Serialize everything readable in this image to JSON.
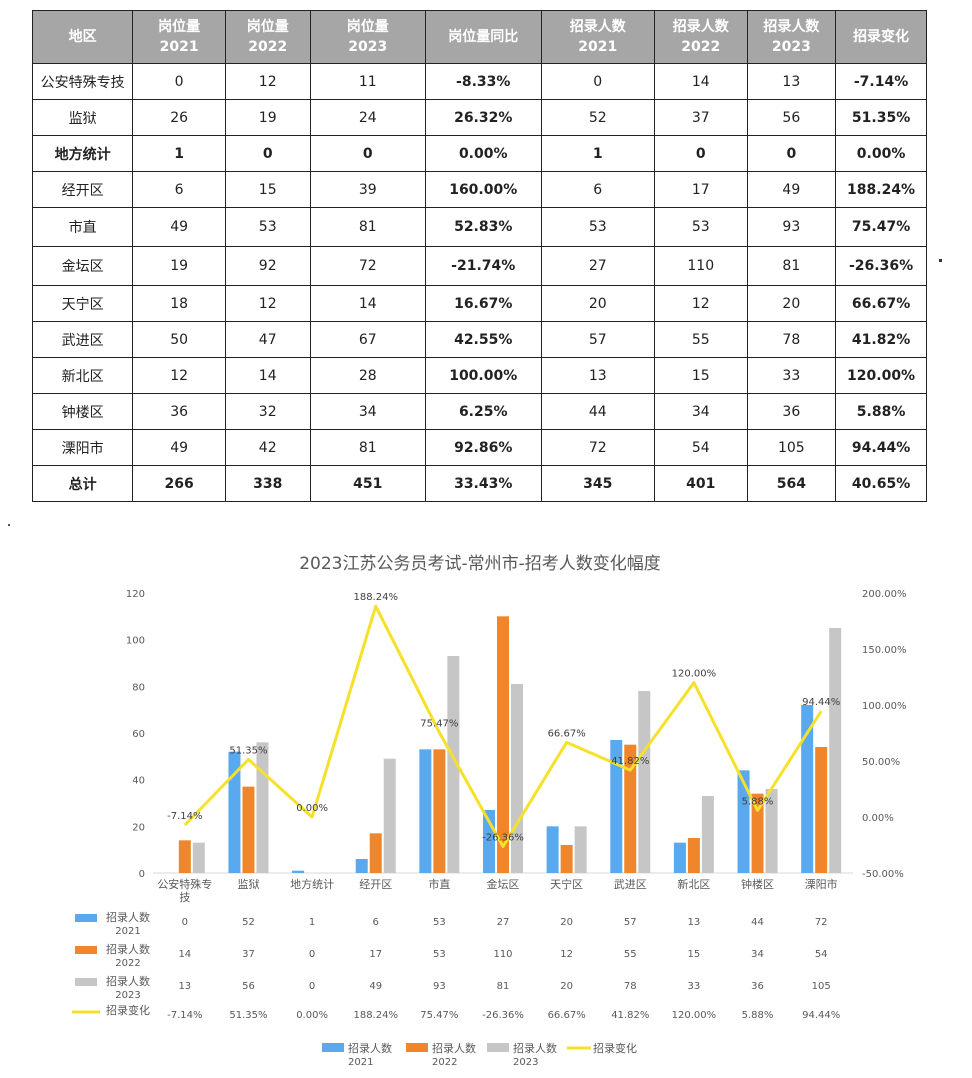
{
  "table": {
    "headers": [
      "地区",
      "岗位量\n2021",
      "岗位量\n2022",
      "岗位量\n2023",
      "岗位量同比",
      "招录人数\n2021",
      "招录人数\n2022",
      "招录人数\n2023",
      "招录变化"
    ],
    "rows": [
      [
        "公安特殊专技",
        "0",
        "12",
        "11",
        "-8.33%",
        "0",
        "14",
        "13",
        "-7.14%"
      ],
      [
        "监狱",
        "26",
        "19",
        "24",
        "26.32%",
        "52",
        "37",
        "56",
        "51.35%"
      ],
      [
        "地方统计",
        "1",
        "0",
        "0",
        "0.00%",
        "1",
        "0",
        "0",
        "0.00%"
      ],
      [
        "经开区",
        "6",
        "15",
        "39",
        "160.00%",
        "6",
        "17",
        "49",
        "188.24%"
      ],
      [
        "市直",
        "49",
        "53",
        "81",
        "52.83%",
        "53",
        "53",
        "93",
        "75.47%"
      ],
      [
        "金坛区",
        "19",
        "92",
        "72",
        "-21.74%",
        "27",
        "110",
        "81",
        "-26.36%"
      ],
      [
        "天宁区",
        "18",
        "12",
        "14",
        "16.67%",
        "20",
        "12",
        "20",
        "66.67%"
      ],
      [
        "武进区",
        "50",
        "47",
        "67",
        "42.55%",
        "57",
        "55",
        "78",
        "41.82%"
      ],
      [
        "新北区",
        "12",
        "14",
        "28",
        "100.00%",
        "13",
        "15",
        "33",
        "120.00%"
      ],
      [
        "钟楼区",
        "36",
        "32",
        "34",
        "6.25%",
        "44",
        "34",
        "36",
        "5.88%"
      ],
      [
        "溧阳市",
        "49",
        "42",
        "81",
        "92.86%",
        "72",
        "54",
        "105",
        "94.44%"
      ],
      [
        "总计",
        "266",
        "338",
        "451",
        "33.43%",
        "345",
        "401",
        "564",
        "40.65%"
      ]
    ]
  },
  "chart_data": {
    "type": "bar",
    "title": "2023江苏公务员考试-常州市-招考人数变化幅度",
    "categories": [
      "公安特殊专技",
      "监狱",
      "地方统计",
      "经开区",
      "市直",
      "金坛区",
      "天宁区",
      "武进区",
      "新北区",
      "钟楼区",
      "溧阳市"
    ],
    "series": [
      {
        "name": "招录人数2021",
        "type": "bar",
        "color": "#5aa8ee",
        "values": [
          0,
          52,
          1,
          6,
          53,
          27,
          20,
          57,
          13,
          44,
          72
        ]
      },
      {
        "name": "招录人数2022",
        "type": "bar",
        "color": "#f0862b",
        "values": [
          14,
          37,
          0,
          17,
          53,
          110,
          12,
          55,
          15,
          34,
          54
        ]
      },
      {
        "name": "招录人数2023",
        "type": "bar",
        "color": "#c6c6c6",
        "values": [
          13,
          56,
          0,
          49,
          93,
          81,
          20,
          78,
          33,
          36,
          105
        ]
      },
      {
        "name": "招录变化",
        "type": "line",
        "axis": "right",
        "color": "#f6e12a",
        "values": [
          -7.14,
          51.35,
          0.0,
          188.24,
          75.47,
          -26.36,
          66.67,
          41.82,
          120.0,
          5.88,
          94.44
        ],
        "labels": [
          "-7.14%",
          "51.35%",
          "0.00%",
          "188.24%",
          "75.47%",
          "-26.36%",
          "66.67%",
          "41.82%",
          "120.00%",
          "5.88%",
          "94.44%"
        ]
      }
    ],
    "y_left": {
      "min": 0,
      "max": 120,
      "ticks": [
        "0",
        "20",
        "40",
        "60",
        "80",
        "100",
        "120"
      ]
    },
    "y_right": {
      "min": -50,
      "max": 200,
      "ticks": [
        "-50.00%",
        "0.00%",
        "50.00%",
        "100.00%",
        "150.00%",
        "200.00%"
      ]
    },
    "data_table": [
      {
        "label": "招录人数\n2021",
        "values": [
          "0",
          "52",
          "1",
          "6",
          "53",
          "27",
          "20",
          "57",
          "13",
          "44",
          "72"
        ]
      },
      {
        "label": "招录人数\n2022",
        "values": [
          "14",
          "37",
          "0",
          "17",
          "53",
          "110",
          "12",
          "55",
          "15",
          "34",
          "54"
        ]
      },
      {
        "label": "招录人数\n2023",
        "values": [
          "13",
          "56",
          "0",
          "49",
          "93",
          "81",
          "20",
          "78",
          "33",
          "36",
          "105"
        ]
      },
      {
        "label": "招录变化",
        "values": [
          "-7.14%",
          "51.35%",
          "0.00%",
          "188.24%",
          "75.47%",
          "-26.36%",
          "66.67%",
          "41.82%",
          "120.00%",
          "5.88%",
          "94.44%"
        ]
      }
    ],
    "legend": {
      "position": "bottom",
      "items": [
        "招录人数\n2021",
        "招录人数\n2022",
        "招录人数\n2023",
        "招录变化"
      ]
    }
  }
}
